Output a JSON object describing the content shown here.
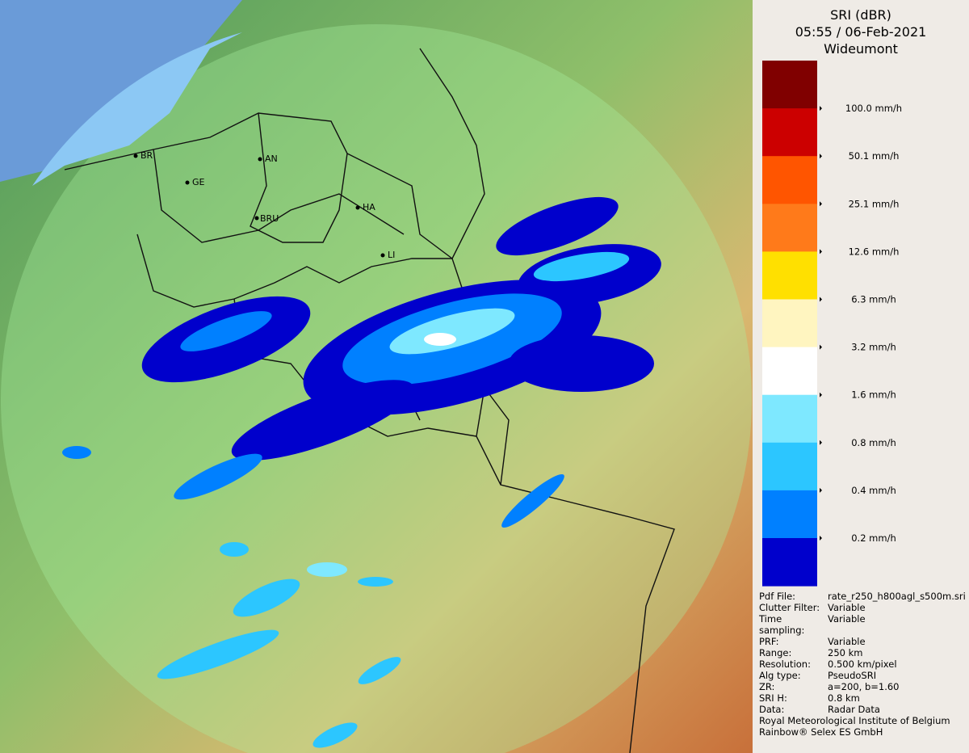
{
  "header": {
    "title": "SRI (dBR)",
    "time": "05:55 / 06-Feb-2021",
    "site": "Wideumont"
  },
  "legend": {
    "colors": [
      "#800000",
      "#cc0000",
      "#ff5500",
      "#ff7a1a",
      "#ffe000",
      "#fff5c0",
      "#ffffff",
      "#7ee8ff",
      "#2cc6ff",
      "#0080ff",
      "#0000cc"
    ],
    "labels": [
      "100.0 mm/h",
      "50.1 mm/h",
      "25.1 mm/h",
      "12.6 mm/h",
      "6.3 mm/h",
      "3.2 mm/h",
      "1.6 mm/h",
      "0.8 mm/h",
      "0.4 mm/h",
      "0.2 mm/h"
    ]
  },
  "info": {
    "rows": [
      [
        "Pdf File:",
        "rate_r250_h800agl_s500m.sri"
      ],
      [
        "Clutter Filter:",
        "Variable"
      ],
      [
        "Time sampling:",
        "Variable"
      ],
      [
        "PRF:",
        "Variable"
      ],
      [
        "Range:",
        "250 km"
      ],
      [
        "Resolution:",
        "0.500 km/pixel"
      ],
      [
        "Alg type:",
        "PseudoSRI"
      ],
      [
        "ZR:",
        "a=200, b=1.60"
      ],
      [
        "SRI H:",
        "0.8 km"
      ],
      [
        "Data:",
        "Radar Data"
      ]
    ],
    "footer": [
      "Royal Meteorological Institute of Belgium",
      "Rainbow® Selex ES GmbH"
    ]
  },
  "map": {
    "cities": [
      "BR",
      "GE",
      "AN",
      "BRU",
      "HA",
      "LI"
    ]
  }
}
